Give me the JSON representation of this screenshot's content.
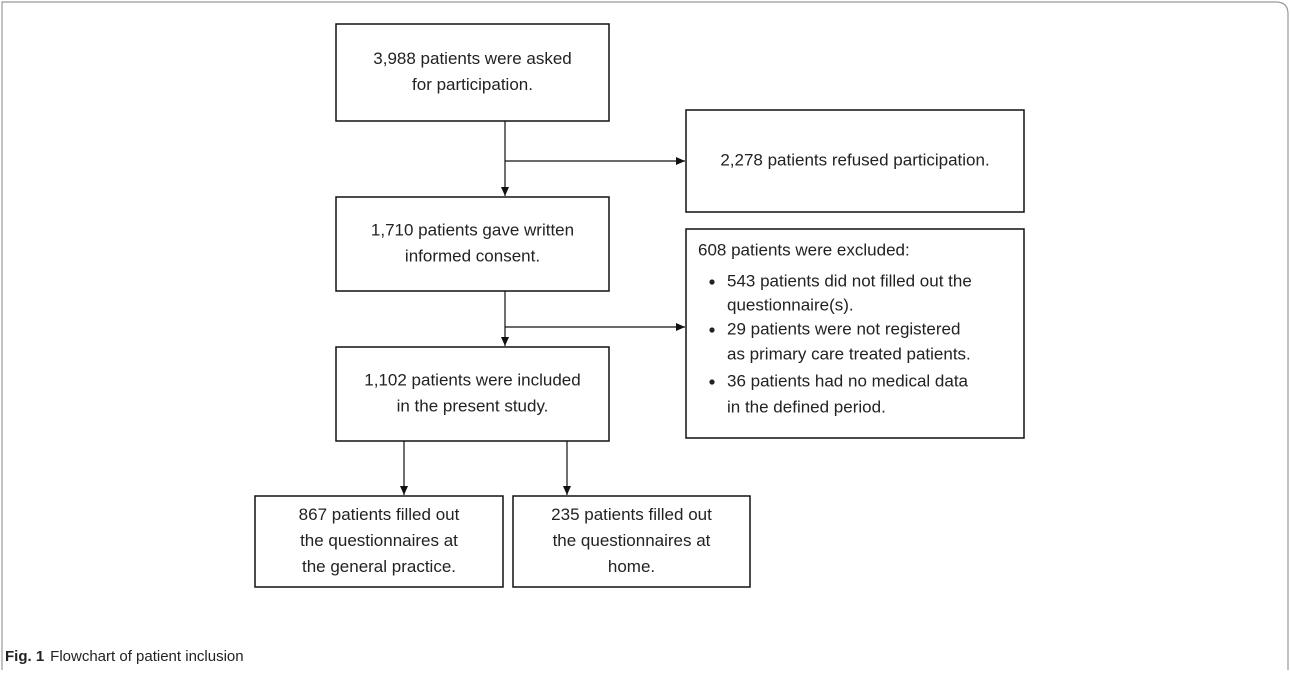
{
  "nodes": [
    {
      "lines": [
        "3,988 patients were asked",
        "for participation."
      ]
    },
    {
      "lines": [
        "2,278 patients refused participation."
      ]
    },
    {
      "lines": [
        "1,710 patients gave written",
        "informed consent."
      ]
    },
    {
      "lines": [
        "1,102 patients were included",
        "in the present study."
      ]
    },
    {
      "lines": [
        "867 patients filled out",
        "the questionnaires at",
        "the general practice."
      ]
    },
    {
      "lines": [
        "235 patients filled out",
        "the questionnaires at",
        "home."
      ]
    }
  ],
  "excluded": {
    "title": "608 patients were excluded:",
    "items": [
      [
        "543 patients did not filled out the",
        "questionnaire(s)."
      ],
      [
        "29 patients were not registered",
        "as primary care treated patients."
      ],
      [
        "36 patients had no medical data",
        "in the defined period."
      ]
    ]
  },
  "caption": {
    "label": "Fig. 1",
    "text": "Flowchart of patient inclusion"
  }
}
